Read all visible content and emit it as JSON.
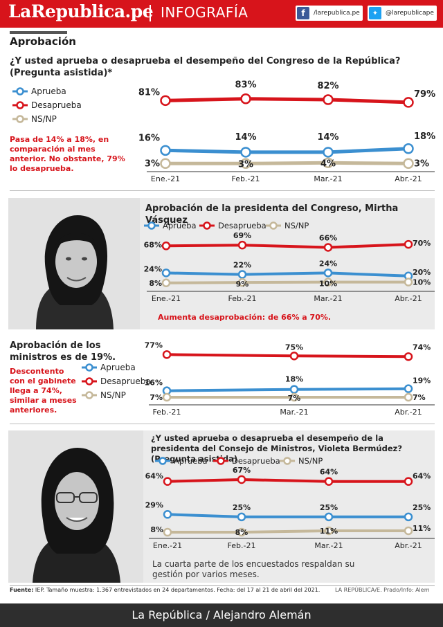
{
  "header": {
    "brand": "LaRepublica.pe",
    "section": "INFOGRAFÍA",
    "facebook_handle": "/larepublica.pe",
    "twitter_handle": "@larepublicape",
    "facebook_icon": "facebook-icon",
    "twitter_icon": "twitter-icon"
  },
  "section_title": "Aprobación",
  "legend_labels": {
    "aprueba": "Aprueba",
    "desaprueba": "Desaprueba",
    "nsnp": "NS/NP"
  },
  "colors": {
    "aprueba": "#3b8fd0",
    "desaprueba": "#d7141b",
    "nsnp": "#c5b89a",
    "brand": "#d7141b"
  },
  "congreso": {
    "question": "¿Y usted aprueba o desaprueba el desempeño del Congreso de la República? (Pregunta asistida)*",
    "note": "Pasa de 14% a 18%, en comparación al mes anterior. No obstante, 79% lo desaprueba."
  },
  "presidenta_congreso": {
    "title": "Aprobación de la presidenta del Congreso, Mirtha Vásquez",
    "note": "Aumenta desaprobación: de 66% a 70%."
  },
  "ministros": {
    "title": "Aprobación de los ministros es de 19%.",
    "note": "Descontento con el gabinete llega a 74%, similar a meses anteriores."
  },
  "premier": {
    "question": "¿Y usted aprueba o desaprueba el desempeño de la presidenta del Consejo de Ministros, Violeta Bermúdez? (Pregunta asistida)",
    "note": "La cuarta parte de los encuestados respaldan su gestión por varios meses."
  },
  "chart_data": [
    {
      "type": "line",
      "x": [
        "Ene.-21",
        "Feb.-21",
        "Mar.-21",
        "Abr.-21"
      ],
      "series": [
        {
          "name": "Aprueba",
          "values": [
            16,
            14,
            14,
            18
          ]
        },
        {
          "name": "Desaprueba",
          "values": [
            81,
            83,
            82,
            79
          ]
        },
        {
          "name": "NS/NP",
          "values": [
            3,
            3,
            4,
            3
          ]
        }
      ],
      "title": "¿Y usted aprueba o desaprueba el desempeño del Congreso de la República? (Pregunta asistida)*",
      "legend": "left"
    },
    {
      "type": "line",
      "x": [
        "Ene.-21",
        "Feb.-21",
        "Mar.-21",
        "Abr.-21"
      ],
      "series": [
        {
          "name": "Aprueba",
          "values": [
            24,
            22,
            24,
            20
          ]
        },
        {
          "name": "Desaprueba",
          "values": [
            68,
            69,
            66,
            70
          ]
        },
        {
          "name": "NS/NP",
          "values": [
            8,
            9,
            10,
            10
          ]
        }
      ],
      "title": "Aprobación de la presidenta del Congreso, Mirtha Vásquez",
      "legend": "top"
    },
    {
      "type": "line",
      "x": [
        "Feb.-21",
        "Mar.-21",
        "Abr.-21"
      ],
      "series": [
        {
          "name": "Aprueba",
          "values": [
            16,
            18,
            19
          ]
        },
        {
          "name": "Desaprueba",
          "values": [
            77,
            75,
            74
          ]
        },
        {
          "name": "NS/NP",
          "values": [
            7,
            7,
            7
          ]
        }
      ],
      "title": "Aprobación de los ministros es de 19%.",
      "legend": "left"
    },
    {
      "type": "line",
      "x": [
        "Ene.-21",
        "Feb.-21",
        "Mar.-21",
        "Abr.-21"
      ],
      "series": [
        {
          "name": "Aprueba",
          "values": [
            29,
            25,
            25,
            25
          ]
        },
        {
          "name": "Desaprueba",
          "values": [
            64,
            67,
            64,
            64
          ]
        },
        {
          "name": "NS/NP",
          "values": [
            8,
            8,
            11,
            11
          ]
        }
      ],
      "title": "¿Y usted aprueba o desaprueba el desempeño de la presidenta del Consejo de Ministros, Violeta Bermúdez? (Pregunta asistida)",
      "legend": "top"
    }
  ],
  "footer": {
    "source_label": "Fuente:",
    "source_text": "IEP. Tamaño muestra: 1.367 entrevistados en 24 departamentos. Fecha: del 17 al 21 de abril del 2021.",
    "credit_small": "LA REPÚBLICA/E. Prado/Info: Alem",
    "credit": "La República / Alejandro Alemán"
  }
}
